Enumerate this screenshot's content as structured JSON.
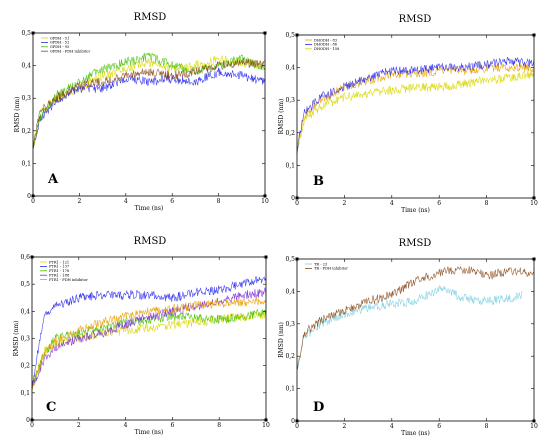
{
  "chart_data": [
    {
      "type": "line",
      "panel": "A",
      "title": "RMSD",
      "xlabel": "Time (ns)",
      "ylabel": "RMSD (nm)",
      "xlim": [
        0,
        10
      ],
      "ylim": [
        0,
        0.5
      ],
      "xticks": [
        "0",
        "2",
        "4",
        "6",
        "8",
        "10"
      ],
      "yticks": [
        "0",
        "0,1",
        "0,2",
        "0,3",
        "0,4",
        "0,5"
      ],
      "legend": "top-left",
      "series": [
        {
          "name": "GPDH - 51",
          "color": "#d8d800",
          "points": [
            [
              0,
              0.15
            ],
            [
              0.3,
              0.25
            ],
            [
              1,
              0.3
            ],
            [
              2,
              0.33
            ],
            [
              3,
              0.37
            ],
            [
              4,
              0.39
            ],
            [
              5,
              0.41
            ],
            [
              6,
              0.39
            ],
            [
              7,
              0.4
            ],
            [
              8,
              0.42
            ],
            [
              9,
              0.41
            ],
            [
              10,
              0.4
            ]
          ]
        },
        {
          "name": "GPDH - 52",
          "color": "#2a2aee",
          "points": [
            [
              0,
              0.15
            ],
            [
              0.3,
              0.24
            ],
            [
              1,
              0.29
            ],
            [
              2,
              0.33
            ],
            [
              3,
              0.33
            ],
            [
              4,
              0.36
            ],
            [
              5,
              0.35
            ],
            [
              6,
              0.36
            ],
            [
              7,
              0.35
            ],
            [
              8,
              0.38
            ],
            [
              9,
              0.37
            ],
            [
              10,
              0.35
            ]
          ]
        },
        {
          "name": "GPDH - 95",
          "color": "#44c000",
          "points": [
            [
              0,
              0.15
            ],
            [
              0.3,
              0.24
            ],
            [
              1,
              0.31
            ],
            [
              2,
              0.35
            ],
            [
              3,
              0.39
            ],
            [
              4,
              0.41
            ],
            [
              5,
              0.43
            ],
            [
              6,
              0.4
            ],
            [
              7,
              0.38
            ],
            [
              8,
              0.4
            ],
            [
              9,
              0.42
            ],
            [
              10,
              0.39
            ]
          ]
        },
        {
          "name": "GPDH - FDH inhibitor",
          "color": "#8b4a1a",
          "points": [
            [
              0,
              0.15
            ],
            [
              0.3,
              0.26
            ],
            [
              1,
              0.3
            ],
            [
              2,
              0.34
            ],
            [
              3,
              0.35
            ],
            [
              4,
              0.37
            ],
            [
              5,
              0.38
            ],
            [
              6,
              0.37
            ],
            [
              7,
              0.38
            ],
            [
              8,
              0.4
            ],
            [
              9,
              0.41
            ],
            [
              10,
              0.4
            ]
          ]
        }
      ]
    },
    {
      "type": "line",
      "panel": "B",
      "title": "RMSD",
      "xlabel": "Time (ns)",
      "ylabel": "RMSD (nm)",
      "xlim": [
        0,
        10
      ],
      "ylim": [
        0,
        0.5
      ],
      "xticks": [
        "0",
        "2",
        "4",
        "6",
        "8",
        "10"
      ],
      "yticks": [
        "0",
        "0,1",
        "0,2",
        "0,3",
        "0,4",
        "0,5"
      ],
      "legend": "top-left",
      "series": [
        {
          "name": "DHODH - 83",
          "color": "#e8a000",
          "points": [
            [
              0,
              0.15
            ],
            [
              0.3,
              0.25
            ],
            [
              1,
              0.3
            ],
            [
              2,
              0.34
            ],
            [
              3,
              0.36
            ],
            [
              4,
              0.38
            ],
            [
              5,
              0.38
            ],
            [
              6,
              0.39
            ],
            [
              7,
              0.39
            ],
            [
              8,
              0.4
            ],
            [
              9,
              0.4
            ],
            [
              10,
              0.4
            ]
          ]
        },
        {
          "name": "DHODH - 86",
          "color": "#2a2aee",
          "points": [
            [
              0,
              0.15
            ],
            [
              0.3,
              0.26
            ],
            [
              1,
              0.31
            ],
            [
              2,
              0.34
            ],
            [
              3,
              0.37
            ],
            [
              4,
              0.39
            ],
            [
              5,
              0.39
            ],
            [
              6,
              0.4
            ],
            [
              7,
              0.4
            ],
            [
              8,
              0.41
            ],
            [
              9,
              0.42
            ],
            [
              10,
              0.41
            ]
          ]
        },
        {
          "name": "DHODH - 158",
          "color": "#d8d800",
          "points": [
            [
              0,
              0.15
            ],
            [
              0.3,
              0.24
            ],
            [
              1,
              0.28
            ],
            [
              2,
              0.31
            ],
            [
              3,
              0.32
            ],
            [
              4,
              0.33
            ],
            [
              5,
              0.34
            ],
            [
              6,
              0.34
            ],
            [
              7,
              0.35
            ],
            [
              8,
              0.36
            ],
            [
              9,
              0.37
            ],
            [
              10,
              0.38
            ]
          ]
        }
      ]
    },
    {
      "type": "line",
      "panel": "C",
      "title": "RMSD",
      "xlabel": "Time (ns)",
      "ylabel": "RMSD (nm)",
      "xlim": [
        0,
        10
      ],
      "ylim": [
        0,
        0.6
      ],
      "xticks": [
        "0",
        "2",
        "4",
        "6",
        "8",
        "10"
      ],
      "yticks": [
        "0",
        "0,1",
        "0,2",
        "0,3",
        "0,4",
        "0,5",
        "0,6"
      ],
      "legend": "top-left",
      "series": [
        {
          "name": "PTR1 - 121",
          "color": "#d8d800",
          "points": [
            [
              0,
              0.12
            ],
            [
              0.5,
              0.25
            ],
            [
              1,
              0.28
            ],
            [
              2,
              0.3
            ],
            [
              3,
              0.32
            ],
            [
              4,
              0.33
            ],
            [
              5,
              0.34
            ],
            [
              6,
              0.35
            ],
            [
              7,
              0.36
            ],
            [
              8,
              0.37
            ],
            [
              9,
              0.38
            ],
            [
              10,
              0.39
            ]
          ]
        },
        {
          "name": "PTR1 - 137",
          "color": "#2a2aee",
          "points": [
            [
              0,
              0.12
            ],
            [
              0.5,
              0.38
            ],
            [
              1,
              0.42
            ],
            [
              2,
              0.45
            ],
            [
              3,
              0.46
            ],
            [
              4,
              0.46
            ],
            [
              5,
              0.46
            ],
            [
              6,
              0.45
            ],
            [
              7,
              0.47
            ],
            [
              8,
              0.48
            ],
            [
              9,
              0.5
            ],
            [
              10,
              0.52
            ]
          ]
        },
        {
          "name": "PTR1 - 178",
          "color": "#44c000",
          "points": [
            [
              0,
              0.12
            ],
            [
              0.5,
              0.24
            ],
            [
              1,
              0.3
            ],
            [
              2,
              0.32
            ],
            [
              3,
              0.34
            ],
            [
              4,
              0.36
            ],
            [
              5,
              0.37
            ],
            [
              6,
              0.38
            ],
            [
              7,
              0.38
            ],
            [
              8,
              0.37
            ],
            [
              9,
              0.38
            ],
            [
              10,
              0.4
            ]
          ]
        },
        {
          "name": "PTR1 - 188",
          "color": "#7b2ad8",
          "points": [
            [
              0,
              0.12
            ],
            [
              0.5,
              0.22
            ],
            [
              1,
              0.27
            ],
            [
              2,
              0.3
            ],
            [
              3,
              0.32
            ],
            [
              4,
              0.35
            ],
            [
              5,
              0.38
            ],
            [
              6,
              0.4
            ],
            [
              7,
              0.42
            ],
            [
              8,
              0.44
            ],
            [
              9,
              0.46
            ],
            [
              10,
              0.47
            ]
          ]
        },
        {
          "name": "PTR1 - FDH inhibitor",
          "color": "#e8a000",
          "points": [
            [
              0,
              0.12
            ],
            [
              0.5,
              0.24
            ],
            [
              1,
              0.29
            ],
            [
              2,
              0.33
            ],
            [
              3,
              0.36
            ],
            [
              4,
              0.38
            ],
            [
              5,
              0.4
            ],
            [
              6,
              0.41
            ],
            [
              7,
              0.42
            ],
            [
              8,
              0.43
            ],
            [
              9,
              0.43
            ],
            [
              10,
              0.44
            ]
          ]
        }
      ]
    },
    {
      "type": "line",
      "panel": "D",
      "title": "RMSD",
      "xlabel": "Time (ns)",
      "ylabel": "RMSD (nm)",
      "xlim": [
        0,
        10
      ],
      "ylim": [
        0,
        0.5
      ],
      "xticks": [
        "0",
        "2",
        "4",
        "6",
        "8",
        "10"
      ],
      "yticks": [
        "0",
        "0,1",
        "0,2",
        "0,3",
        "0,4",
        "0,5"
      ],
      "legend": "top-left",
      "series": [
        {
          "name": "TR - 23",
          "color": "#7fd0e0",
          "points": [
            [
              0,
              0.15
            ],
            [
              0.3,
              0.26
            ],
            [
              1,
              0.3
            ],
            [
              2,
              0.33
            ],
            [
              3,
              0.35
            ],
            [
              4,
              0.36
            ],
            [
              5,
              0.37
            ],
            [
              6,
              0.41
            ],
            [
              7,
              0.38
            ],
            [
              8,
              0.37
            ],
            [
              9,
              0.38
            ],
            [
              9.5,
              0.39
            ]
          ]
        },
        {
          "name": "TR - FDH inhibitor",
          "color": "#8b4a1a",
          "points": [
            [
              0,
              0.15
            ],
            [
              0.3,
              0.27
            ],
            [
              1,
              0.31
            ],
            [
              2,
              0.34
            ],
            [
              3,
              0.37
            ],
            [
              4,
              0.39
            ],
            [
              5,
              0.43
            ],
            [
              6,
              0.46
            ],
            [
              7,
              0.47
            ],
            [
              8,
              0.45
            ],
            [
              9,
              0.46
            ],
            [
              10,
              0.46
            ]
          ]
        }
      ]
    }
  ]
}
